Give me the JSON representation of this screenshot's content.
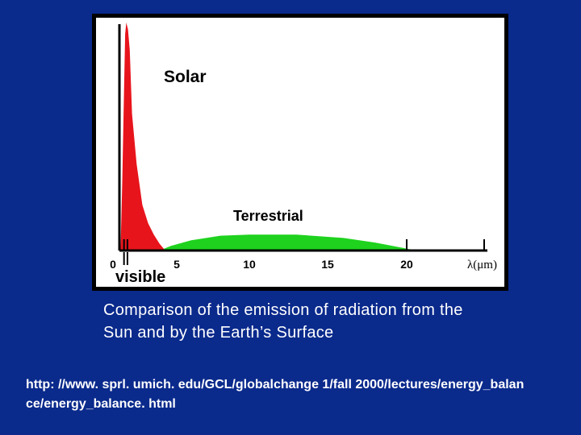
{
  "slide": {
    "background_color": "#0a2a8c",
    "caption_lines": [
      "Comparison of the emission of radiation from the",
      "Sun and by the Earth’s Surface"
    ],
    "source_lines": [
      "http: //www. sprl. umich. edu/GCL/globalchange 1/fall 2000/lectures/energy_balan",
      "ce/energy_balance. html"
    ]
  },
  "chart_data": {
    "type": "area",
    "title": "",
    "xlabel": "λ(μm)",
    "ylabel": "",
    "xlim": [
      0,
      24
    ],
    "ylim": [
      0,
      100
    ],
    "x_ticks": [
      {
        "value": 0,
        "label": "0"
      },
      {
        "value": 5,
        "label": "5"
      },
      {
        "value": 10,
        "label": "10"
      },
      {
        "value": 15,
        "label": "15"
      },
      {
        "value": 20,
        "label": "20"
      }
    ],
    "minor_ticks": [
      0.4,
      0.7,
      20,
      24
    ],
    "visible_label": "visible",
    "series": [
      {
        "name": "Solar",
        "color": "#e8141c",
        "points": [
          [
            0.1,
            0
          ],
          [
            0.25,
            30
          ],
          [
            0.4,
            70
          ],
          [
            0.5,
            95
          ],
          [
            0.6,
            100
          ],
          [
            0.75,
            97
          ],
          [
            0.9,
            88
          ],
          [
            1.1,
            60
          ],
          [
            1.5,
            38
          ],
          [
            2,
            20
          ],
          [
            2.5,
            12
          ],
          [
            3,
            7
          ],
          [
            3.5,
            3
          ],
          [
            4,
            0
          ]
        ]
      },
      {
        "name": "Terrestrial",
        "color": "#1ed21e",
        "points": [
          [
            3.5,
            0
          ],
          [
            4.5,
            2
          ],
          [
            6,
            4.5
          ],
          [
            8,
            6.5
          ],
          [
            10,
            7
          ],
          [
            13,
            7
          ],
          [
            16,
            5.5
          ],
          [
            18,
            3.5
          ],
          [
            19.5,
            1.5
          ],
          [
            20.5,
            0
          ]
        ]
      }
    ],
    "grid": false,
    "legend": "none"
  }
}
